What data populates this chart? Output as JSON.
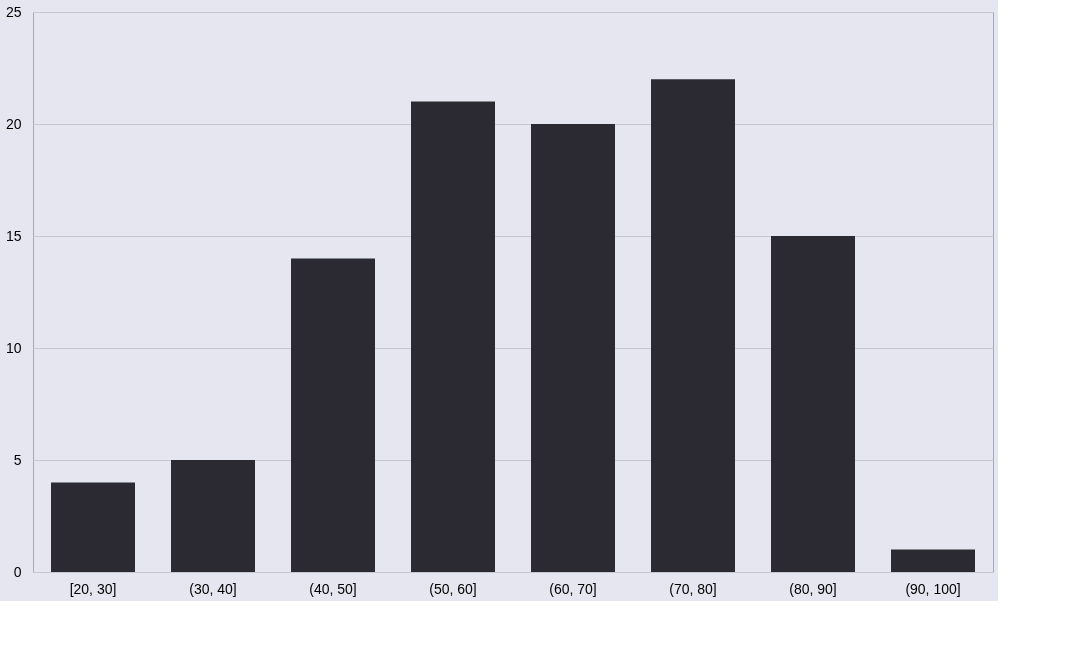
{
  "chart_data": {
    "type": "bar",
    "categories": [
      "[20, 30]",
      "(30, 40]",
      "(40, 50]",
      "(50, 60]",
      "(60, 70]",
      "(70, 80]",
      "(80, 90]",
      "(90, 100]"
    ],
    "values": [
      4,
      5,
      14,
      21,
      20,
      22,
      15,
      1
    ],
    "color": "#2b2a33",
    "ylim": [
      0,
      25
    ],
    "yticks": [
      0,
      5,
      10,
      15,
      20,
      25
    ],
    "grid": "y"
  }
}
